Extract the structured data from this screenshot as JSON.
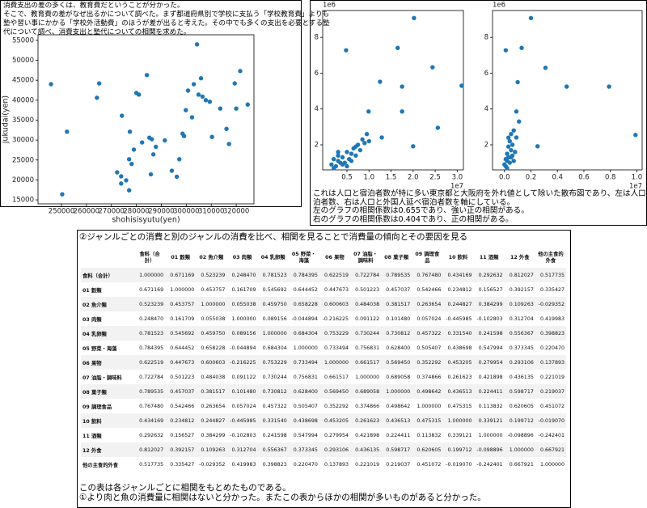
{
  "intro": {
    "lines": [
      "消費支出の差の多くは、教育費だということが分かった。",
      "そこで、教育費の差がなぜ出るかについて調べた。まず都道府県別で学校に支払う「学校教育費」よりも",
      "塾や習い事にかかる「学校外活動費」のほうが差が出ると考えた。その中でも多くの支出を必要とする塾",
      "代について調べ、消費支出と塾代についての相関を求めた。"
    ]
  },
  "chart_data": [
    {
      "type": "scatter",
      "x_label": "shohisisyutu(yen)",
      "y_label": "jukudai(yen)",
      "color": "#1f77b4",
      "xlim": [
        240600,
        327100
      ],
      "ylim": [
        14000,
        56400
      ],
      "xticks": [
        250000,
        260000,
        270000,
        280000,
        290000,
        300000,
        310000,
        320000
      ],
      "yticks": [
        15000,
        20000,
        25000,
        30000,
        35000,
        40000,
        45000,
        50000,
        55000
      ],
      "x": [
        245800,
        250300,
        252200,
        265100,
        264200,
        274200,
        272300,
        273900,
        275900,
        273900,
        277100,
        277100,
        278100,
        277400,
        279000,
        280000,
        281000,
        284200,
        282300,
        285200,
        286200,
        285800,
        286800,
        287800,
        291400,
        294200,
        296200,
        297200,
        298500,
        299100,
        299800,
        300700,
        302300,
        304300,
        303000,
        304900,
        305900,
        306500,
        307800,
        309400,
        310300,
        313600,
        316100,
        317100,
        319400,
        320000,
        321600,
        324600
      ],
      "values": [
        44000,
        16400,
        32100,
        44200,
        40600,
        36100,
        21900,
        20900,
        19900,
        19100,
        17400,
        25200,
        24000,
        32100,
        27600,
        41800,
        41400,
        46300,
        29400,
        30600,
        30200,
        21400,
        26400,
        28300,
        29900,
        22300,
        20800,
        25200,
        31600,
        31000,
        37500,
        42400,
        35700,
        54000,
        44000,
        41400,
        45500,
        40900,
        40000,
        39600,
        30800,
        37900,
        32800,
        29000,
        44200,
        37900,
        47300,
        38900
      ]
    },
    {
      "type": "scatter",
      "color": "#1f77b4",
      "y_offset_label": "1e6",
      "x_offset_label": "1e7",
      "xlim": [
        -0.05,
        3.14
      ],
      "ylim": [
        0.6,
        9.5
      ],
      "xticks": [
        0.5,
        {
          "value": 1,
          "label": "1.0"
        },
        1.5,
        {
          "value": 2,
          "label": "2.0"
        },
        2.5,
        {
          "value": 3,
          "label": "3.0"
        }
      ],
      "yticks": [
        2,
        4,
        6,
        8
      ],
      "x": [
        0.48,
        2.02,
        1.65,
        1.25,
        1.75,
        2.44,
        3.1,
        0.99,
        1.75,
        2.56,
        2.0,
        1.29,
        0.15,
        0.2,
        0.25,
        0.3,
        0.3,
        0.35,
        0.4,
        0.45,
        0.5,
        0.55,
        0.6,
        0.65,
        0.7,
        0.75,
        0.8,
        0.85,
        0.9,
        0.95,
        1.0,
        0.4,
        0.2,
        0.6,
        0.5,
        0.7,
        0.3
      ],
      "values": [
        7.28,
        9.08,
        7.41,
        5.52,
        5.25,
        6.33,
        5.3,
        3.86,
        3.86,
        2.95,
        1.92,
        2.41,
        0.9,
        1.2,
        0.8,
        1.1,
        1.4,
        1.0,
        1.3,
        1.0,
        1.6,
        1.2,
        1.5,
        1.8,
        1.4,
        2.0,
        1.7,
        2.3,
        2.1,
        2.6,
        2.2,
        0.9,
        0.7,
        1.1,
        0.8,
        1.9,
        1.6
      ]
    },
    {
      "type": "scatter",
      "color": "#1f77b4",
      "y_offset_label": "1e6",
      "x_offset_label": "1e7",
      "xlim": [
        -0.09,
        1.04
      ],
      "ylim": [
        0.6,
        9.5
      ],
      "xticks": [
        {
          "value": 0,
          "label": "0.0"
        },
        0.2,
        0.4,
        0.6,
        0.8,
        {
          "value": 1,
          "label": "1.0"
        }
      ],
      "yticks": [
        2,
        4,
        6,
        8
      ],
      "x": [
        0.01,
        0.2,
        0.13,
        0.1,
        0.31,
        0.47,
        0.79,
        0.99,
        0.09,
        0.11,
        0.25,
        0.09,
        0.0,
        0.01,
        0.01,
        0.02,
        0.02,
        0.03,
        0.03,
        0.04,
        0.04,
        0.05,
        0.05,
        0.06,
        0.06,
        0.07,
        0.07,
        0.08,
        0.02,
        0.03,
        0.05
      ],
      "values": [
        7.28,
        9.08,
        7.41,
        5.5,
        6.3,
        5.25,
        5.25,
        2.55,
        3.86,
        3.3,
        1.92,
        2.41,
        0.9,
        1.2,
        0.8,
        1.5,
        1.1,
        1.9,
        1.3,
        2.2,
        1.0,
        1.7,
        2.6,
        1.4,
        2.0,
        1.1,
        2.8,
        1.6,
        0.7,
        2.4,
        1.3
      ]
    }
  ],
  "notes": {
    "lines": [
      "これは人口と宿泊者数が特に多い東京都と大阪府を外れ値として除いた散布図であり、左は人口と延べ宿",
      "泊者数、右は人口と外国人延べ宿泊者数を軸にしている。",
      "左のグラフの相関係数は0.655であり、強い正の相関がある。",
      "右のグラフの相関係数は0.404であり、正の相関がある。"
    ]
  },
  "section": {
    "title": "②ジャンルごとの消費と別のジャンルの消費を比べ、相関を見ることで消費量の傾向とその要因を見る",
    "footer": [
      "この表は各ジャンルごとに相関をもとめたものである。",
      "①より肉と魚の消費量に相関はないと分かった。またこの表からほかの相関が多いものがあると分かった。"
    ]
  },
  "table": {
    "header": [
      "食料（合計）",
      "01 穀類",
      "02 魚介類",
      "03 肉類",
      "04 乳卵類",
      "05 野菜・海藻",
      "06 果物",
      "07 油脂・調味料",
      "08 菓子類",
      "09 調理食品",
      "10 飲料",
      "11 酒類",
      "12 外食",
      "他の主食的外食"
    ],
    "rows": [
      [
        "食料（合計）",
        "1.000000",
        "0.671169",
        "0.523239",
        "0.248470",
        "0.781523",
        "0.784395",
        "0.622519",
        "0.722784",
        "0.789535",
        "0.767480",
        "0.434169",
        "0.292632",
        "0.812027",
        "0.517735"
      ],
      [
        "01 穀類",
        "0.671169",
        "1.000000",
        "0.453757",
        "0.161709",
        "0.545692",
        "0.644452",
        "0.447673",
        "0.501223",
        "0.457037",
        "0.542466",
        "0.234812",
        "0.156527",
        "0.392157",
        "0.335427"
      ],
      [
        "02 魚介類",
        "0.523239",
        "0.453757",
        "1.000000",
        "0.055038",
        "0.459750",
        "0.658228",
        "0.600603",
        "0.484038",
        "0.381517",
        "0.263654",
        "0.244827",
        "0.384299",
        "0.109263",
        "-0.029352"
      ],
      [
        "03 肉類",
        "0.248470",
        "0.161709",
        "0.055038",
        "1.000000",
        "0.089156",
        "-0.044894",
        "-0.216225",
        "0.091122",
        "0.101480",
        "0.057024",
        "-0.445985",
        "-0.102803",
        "0.312704",
        "0.419983"
      ],
      [
        "04 乳卵類",
        "0.781523",
        "0.545692",
        "0.459750",
        "0.089156",
        "1.000000",
        "0.684304",
        "0.753229",
        "0.730244",
        "0.730812",
        "0.457322",
        "0.331540",
        "0.241598",
        "0.556367",
        "0.398823"
      ],
      [
        "05 野菜・海藻",
        "0.784395",
        "0.644452",
        "0.658228",
        "-0.044894",
        "0.684304",
        "1.000000",
        "0.733494",
        "0.756831",
        "0.628400",
        "0.505407",
        "0.438698",
        "0.547994",
        "0.373345",
        "0.220470"
      ],
      [
        "06 果物",
        "0.622519",
        "0.447673",
        "0.600603",
        "-0.216225",
        "0.753229",
        "0.733494",
        "1.000000",
        "0.661517",
        "0.569450",
        "0.352292",
        "0.453205",
        "0.279954",
        "0.293106",
        "0.137893"
      ],
      [
        "07 油脂・調味料",
        "0.722784",
        "0.501223",
        "0.484038",
        "0.091122",
        "0.730244",
        "0.756831",
        "0.661517",
        "1.000000",
        "0.689058",
        "0.374866",
        "0.261623",
        "0.421898",
        "0.436135",
        "0.221019"
      ],
      [
        "08 菓子類",
        "0.789535",
        "0.457037",
        "0.381517",
        "0.101480",
        "0.730812",
        "0.628400",
        "0.569450",
        "0.689058",
        "1.000000",
        "0.498642",
        "0.436513",
        "0.224411",
        "0.598717",
        "0.219037"
      ],
      [
        "09 調理食品",
        "0.767480",
        "0.542466",
        "0.263654",
        "0.057024",
        "0.457322",
        "0.505407",
        "0.352292",
        "0.374866",
        "0.498642",
        "1.000000",
        "0.475315",
        "0.113832",
        "0.620605",
        "0.451072"
      ],
      [
        "10 飲料",
        "0.434169",
        "0.234812",
        "0.244827",
        "-0.445985",
        "0.331540",
        "0.438698",
        "0.453205",
        "0.261623",
        "0.436513",
        "0.475315",
        "1.000000",
        "0.339121",
        "0.199712",
        "-0.019070"
      ],
      [
        "11 酒類",
        "0.292632",
        "0.156527",
        "0.384299",
        "-0.102803",
        "0.241598",
        "0.547994",
        "0.279954",
        "0.421898",
        "0.224411",
        "0.113832",
        "0.339121",
        "1.000000",
        "-0.098896",
        "-0.242401"
      ],
      [
        "12 外食",
        "0.812027",
        "0.392157",
        "0.109263",
        "0.312704",
        "0.556367",
        "0.373345",
        "0.293106",
        "0.436135",
        "0.598717",
        "0.620605",
        "0.199712",
        "-0.098896",
        "1.000000",
        "0.667921"
      ],
      [
        "他の主食的外食",
        "0.517735",
        "0.335427",
        "-0.029352",
        "0.419983",
        "0.398823",
        "0.220470",
        "0.137893",
        "0.221019",
        "0.219037",
        "0.451072",
        "-0.019070",
        "-0.242401",
        "0.667921",
        "1.000000"
      ]
    ]
  }
}
